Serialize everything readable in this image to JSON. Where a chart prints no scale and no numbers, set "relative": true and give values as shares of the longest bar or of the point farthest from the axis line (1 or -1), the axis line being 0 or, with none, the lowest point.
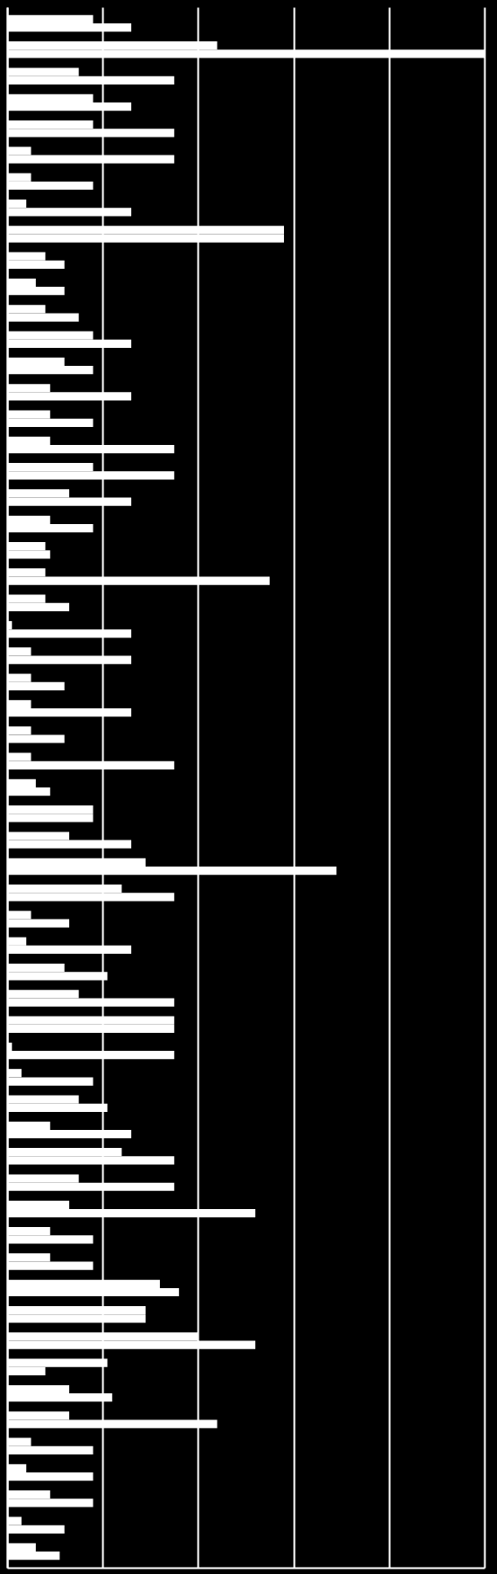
{
  "chart_data": {
    "type": "bar",
    "orientation": "horizontal",
    "relative": true,
    "grid": "x",
    "categories": [
      null,
      null,
      null,
      null,
      null,
      null,
      null,
      null,
      null,
      null,
      null,
      null,
      null,
      null,
      null,
      null,
      null,
      null,
      null,
      null,
      null,
      null,
      null,
      null,
      null,
      null,
      null,
      null,
      null,
      null,
      null,
      null,
      null,
      null,
      null,
      null,
      null,
      null,
      null,
      null,
      null,
      null,
      null,
      null,
      null,
      null,
      null,
      null,
      null,
      null,
      null,
      null,
      null,
      null,
      null,
      null,
      null,
      null,
      null
    ],
    "series": [
      {
        "color": "#ffffff",
        "values": [
          0.18,
          0.44,
          0.15,
          0.18,
          0.18,
          0.05,
          0.05,
          0.04,
          0.58,
          0.08,
          0.06,
          0.08,
          0.18,
          0.12,
          0.09,
          0.09,
          0.09,
          0.18,
          0.13,
          0.09,
          0.08,
          0.08,
          0.08,
          0.01,
          0.05,
          0.05,
          0.05,
          0.05,
          0.05,
          0.06,
          0.18,
          0.13,
          0.29,
          0.24,
          0.05,
          0.04,
          0.12,
          0.15,
          0.35,
          0.01,
          0.03,
          0.15,
          0.09,
          0.24,
          0.15,
          0.13,
          0.09,
          0.09,
          0.32,
          0.29,
          0.4,
          0.21,
          0.13,
          0.13,
          0.05,
          0.04,
          0.09,
          0.03,
          0.06
        ]
      },
      {
        "color": "#ffffff",
        "values": [
          0.26,
          1,
          0.35,
          0.26,
          0.35,
          0.35,
          0.18,
          0.26,
          0.58,
          0.12,
          0.12,
          0.15,
          0.26,
          0.18,
          0.26,
          0.18,
          0.35,
          0.35,
          0.26,
          0.18,
          0.09,
          0.55,
          0.13,
          0.26,
          0.26,
          0.12,
          0.26,
          0.12,
          0.35,
          0.09,
          0.18,
          0.26,
          0.69,
          0.35,
          0.13,
          0.26,
          0.21,
          0.35,
          0.35,
          0.35,
          0.18,
          0.21,
          0.26,
          0.35,
          0.35,
          0.52,
          0.18,
          0.18,
          0.36,
          0.29,
          0.52,
          0.08,
          0.22,
          0.44,
          0.18,
          0.18,
          0.18,
          0.12,
          0.11
        ]
      }
    ]
  }
}
